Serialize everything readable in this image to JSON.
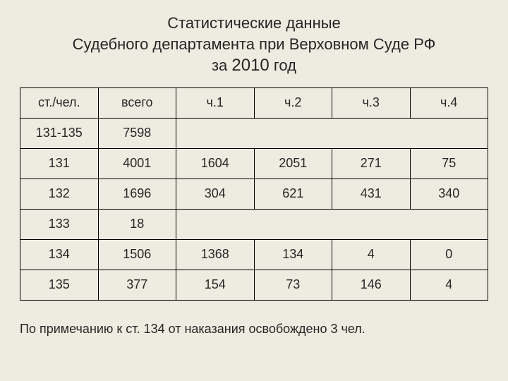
{
  "title": {
    "line1": "Статистические данные",
    "line2": "Судебного департамента при Верховном Суде РФ",
    "line3_prefix": "за ",
    "line3_year": "2010",
    "line3_suffix": " год"
  },
  "table": {
    "columns": [
      "ст./чел.",
      "всего",
      "ч.1",
      "ч.2",
      "ч.3",
      "ч.4"
    ],
    "rows": [
      {
        "cells": [
          "131-135",
          "7598"
        ],
        "merge_rest": true,
        "bold_index": 1
      },
      {
        "cells": [
          "131",
          "4001",
          "1604",
          "2051",
          "271",
          "75"
        ]
      },
      {
        "cells": [
          "132",
          "1696",
          "304",
          "621",
          "431",
          "340"
        ]
      },
      {
        "cells": [
          "133",
          "18"
        ],
        "merge_rest": true
      },
      {
        "cells": [
          "134",
          "1506",
          "1368",
          "134",
          "4",
          "0"
        ]
      },
      {
        "cells": [
          "135",
          "377",
          "154",
          "73",
          "146",
          "4"
        ]
      }
    ],
    "column_count": 6,
    "border_color": "#000000",
    "background_color": "#eeece1",
    "header_fontsize": 18,
    "cell_fontsize": 18,
    "bold_fontsize": 22
  },
  "footnote": "По примечанию к ст. 134 от наказания освобождено 3 чел.",
  "page_background": "#eeece1",
  "text_color": "#262626"
}
